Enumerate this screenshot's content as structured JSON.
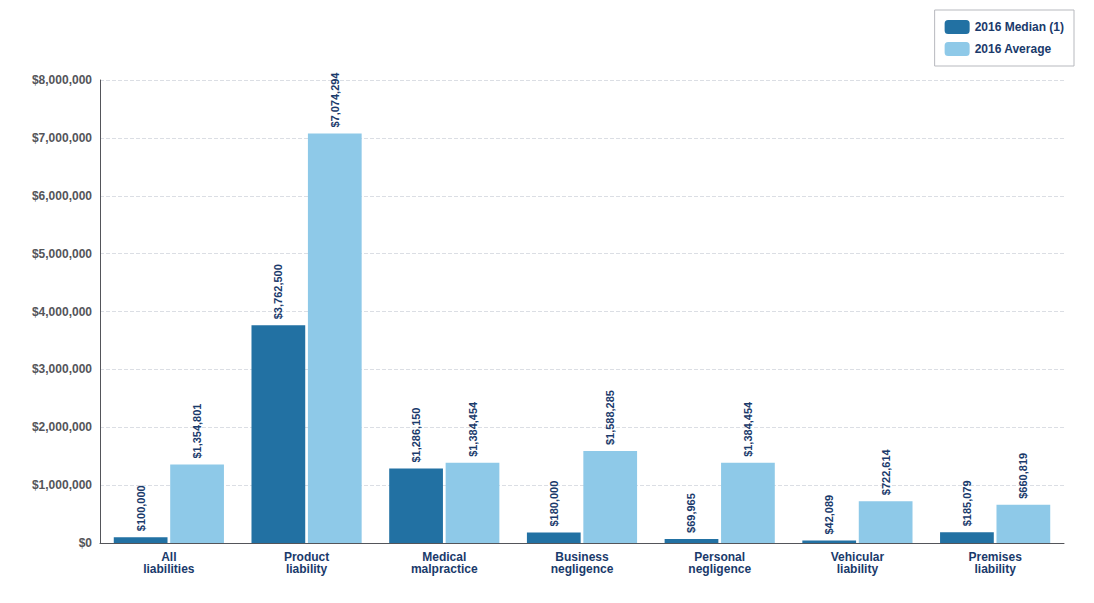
{
  "chart_data": {
    "type": "bar",
    "categories": [
      "All\nliabilities",
      "Product\nliability",
      "Medical\nmalpractice",
      "Business\nnegligence",
      "Personal\nnegligence",
      "Vehicular\nliability",
      "Premises\nliability"
    ],
    "series": [
      {
        "name": "2016 Median (1)",
        "color": "#2271a3",
        "values": [
          100000,
          3762500,
          1286150,
          180000,
          69965,
          42089,
          185079
        ],
        "value_labels": [
          "$100,000",
          "$3,762,500",
          "$1,286,150",
          "$180,000",
          "$69,965",
          "$42,089",
          "$185,079"
        ]
      },
      {
        "name": "2016 Average",
        "color": "#8ec9e8",
        "values": [
          1354801,
          7074294,
          1384454,
          1588285,
          1384454,
          722614,
          660819
        ],
        "value_labels": [
          "$1,354,801",
          "$7,074,294",
          "$1,384,454",
          "$1,588,285",
          "$1,384,454",
          "$722,614",
          "$660,819"
        ]
      }
    ],
    "ylim": [
      0,
      8000000
    ],
    "yticks": [
      {
        "value": 0,
        "label": "$0"
      },
      {
        "value": 1000000,
        "label": "$1,000,000"
      },
      {
        "value": 2000000,
        "label": "$2,000,000"
      },
      {
        "value": 3000000,
        "label": "$3,000,000"
      },
      {
        "value": 4000000,
        "label": "$4,000,000"
      },
      {
        "value": 5000000,
        "label": "$5,000,000"
      },
      {
        "value": 6000000,
        "label": "$6,000,000"
      },
      {
        "value": 7000000,
        "label": "$7,000,000"
      },
      {
        "value": 8000000,
        "label": "$8,000,000"
      }
    ],
    "grid": true,
    "legend": "upper right",
    "data_labels": true
  }
}
